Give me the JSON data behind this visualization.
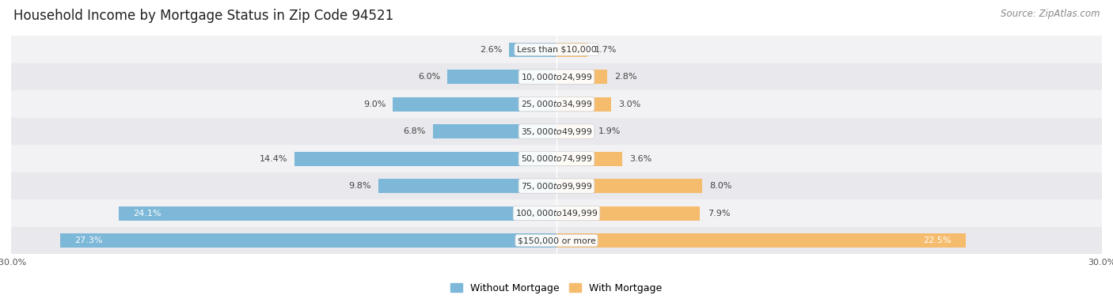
{
  "title": "Household Income by Mortgage Status in Zip Code 94521",
  "source": "Source: ZipAtlas.com",
  "categories": [
    "Less than $10,000",
    "$10,000 to $24,999",
    "$25,000 to $34,999",
    "$35,000 to $49,999",
    "$50,000 to $74,999",
    "$75,000 to $99,999",
    "$100,000 to $149,999",
    "$150,000 or more"
  ],
  "without_mortgage": [
    2.6,
    6.0,
    9.0,
    6.8,
    14.4,
    9.8,
    24.1,
    27.3
  ],
  "with_mortgage": [
    1.7,
    2.8,
    3.0,
    1.9,
    3.6,
    8.0,
    7.9,
    22.5
  ],
  "color_without": "#7db8d8",
  "color_with": "#f5bc6e",
  "bg_row_light": "#f2f2f5",
  "bg_row_dark": "#e8e8ed",
  "xlim": 30.0,
  "title_fontsize": 12,
  "source_fontsize": 8.5,
  "label_fontsize": 8,
  "cat_fontsize": 7.8,
  "legend_fontsize": 9
}
